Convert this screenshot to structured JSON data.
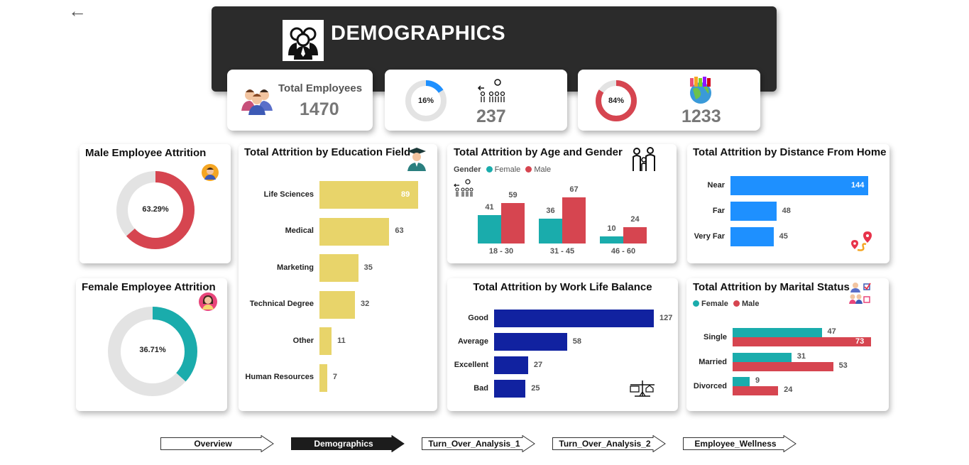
{
  "header": {
    "title": "DEMOGRAPHICS"
  },
  "kpis": {
    "total_employees": {
      "label": "Total Employees",
      "value": "1470"
    },
    "attrition": {
      "percent": 16,
      "percent_label": "16%",
      "value": "237"
    },
    "active": {
      "percent": 84,
      "percent_label": "84%",
      "value": "1233"
    }
  },
  "male_attrition": {
    "title": "Male Employee Attrition",
    "percent": 63.29,
    "label": "63.29%"
  },
  "female_attrition": {
    "title": "Female Employee Attrition",
    "percent": 36.71,
    "label": "36.71%"
  },
  "education": {
    "title": "Total Attrition by Education Field",
    "chart_data": {
      "type": "bar",
      "orientation": "horizontal",
      "categories": [
        "Life Sciences",
        "Medical",
        "Marketing",
        "Technical Degree",
        "Other",
        "Human Resources"
      ],
      "values": [
        89,
        63,
        35,
        32,
        11,
        7
      ],
      "value_labels": [
        "89",
        "63",
        "35",
        "32",
        "11",
        "7"
      ],
      "color": "#e8d46a"
    }
  },
  "age_gender": {
    "title": "Total Attrition by Age and Gender",
    "legend_title": "Gender",
    "chart_data": {
      "type": "bar",
      "categories": [
        "18 - 30",
        "31 - 45",
        "46 - 60"
      ],
      "series": [
        {
          "name": "Female",
          "values": [
            41,
            36,
            10
          ],
          "color": "#1aacac"
        },
        {
          "name": "Male",
          "values": [
            59,
            67,
            24
          ],
          "color": "#d64550"
        }
      ]
    }
  },
  "distance": {
    "title": "Total Attrition by Distance From Home",
    "chart_data": {
      "type": "bar",
      "orientation": "horizontal",
      "categories": [
        "Near",
        "Far",
        "Very Far"
      ],
      "values": [
        144,
        48,
        45
      ],
      "value_labels": [
        "144",
        "48",
        "45"
      ],
      "color": "#1e90ff"
    }
  },
  "worklife": {
    "title": "Total Attrition by Work Life Balance",
    "chart_data": {
      "type": "bar",
      "orientation": "horizontal",
      "categories": [
        "Good",
        "Average",
        "Excellent",
        "Bad"
      ],
      "values": [
        127,
        58,
        27,
        25
      ],
      "value_labels": [
        "127",
        "58",
        "27",
        "25"
      ],
      "color": "#1122a0"
    }
  },
  "marital": {
    "title": "Total Attrition by Marital Status",
    "chart_data": {
      "type": "bar",
      "orientation": "horizontal",
      "categories": [
        "Single",
        "Married",
        "Divorced"
      ],
      "series": [
        {
          "name": "Female",
          "values": [
            47,
            31,
            9
          ],
          "color": "#1aacac"
        },
        {
          "name": "Male",
          "values": [
            73,
            53,
            24
          ],
          "color": "#d64550"
        }
      ]
    }
  },
  "nav": [
    {
      "label": "Overview",
      "active": false
    },
    {
      "label": "Demographics",
      "active": true
    },
    {
      "label": "Turn_Over_Analysis_1",
      "active": false
    },
    {
      "label": "Turn_Over_Analysis_2",
      "active": false
    },
    {
      "label": "Employee_Wellness",
      "active": false
    }
  ],
  "icons": [
    "back-arrow-icon",
    "group-icon",
    "employees-icon",
    "attrition-person-icon",
    "globe-people-icon",
    "male-avatar-icon",
    "female-avatar-icon",
    "graduate-icon",
    "family-icon",
    "location-route-icon",
    "work-life-scale-icon",
    "marital-icon"
  ]
}
